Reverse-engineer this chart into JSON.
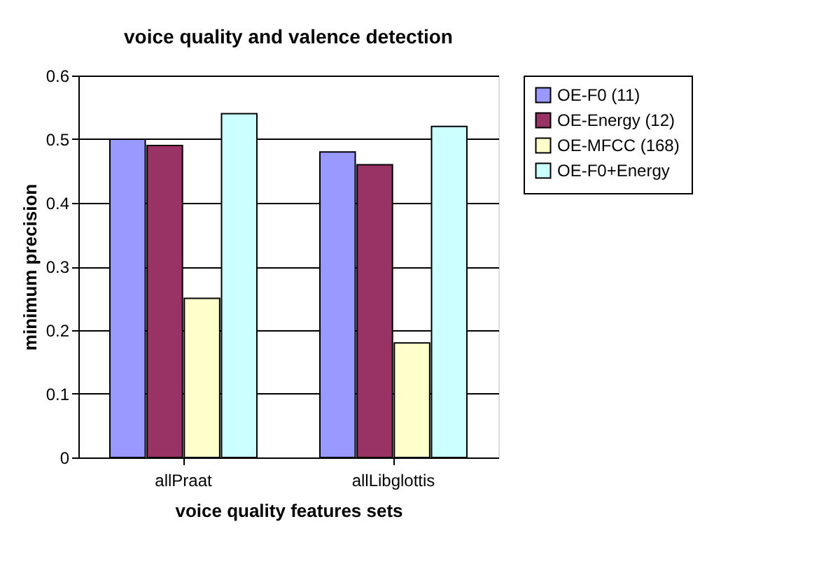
{
  "chart_data": {
    "type": "bar",
    "title": "voice quality and valence detection",
    "xlabel": "voice quality features sets",
    "ylabel": "minimum precision",
    "categories": [
      "allPraat",
      "allLibglottis"
    ],
    "series": [
      {
        "name": "OE-F0 (11)",
        "color": "#9999ff",
        "values": [
          0.5,
          0.48
        ]
      },
      {
        "name": "OE-Energy (12)",
        "color": "#993366",
        "values": [
          0.49,
          0.46
        ]
      },
      {
        "name": "OE-MFCC (168)",
        "color": "#ffffcc",
        "values": [
          0.25,
          0.18
        ]
      },
      {
        "name": "OE-F0+Energy",
        "color": "#ccffff",
        "values": [
          0.54,
          0.52
        ]
      }
    ],
    "ylim": [
      0,
      0.6
    ],
    "yticks": [
      0,
      0.1,
      0.2,
      0.3,
      0.4,
      0.5,
      0.6
    ],
    "grid": "y",
    "legend": "right"
  }
}
